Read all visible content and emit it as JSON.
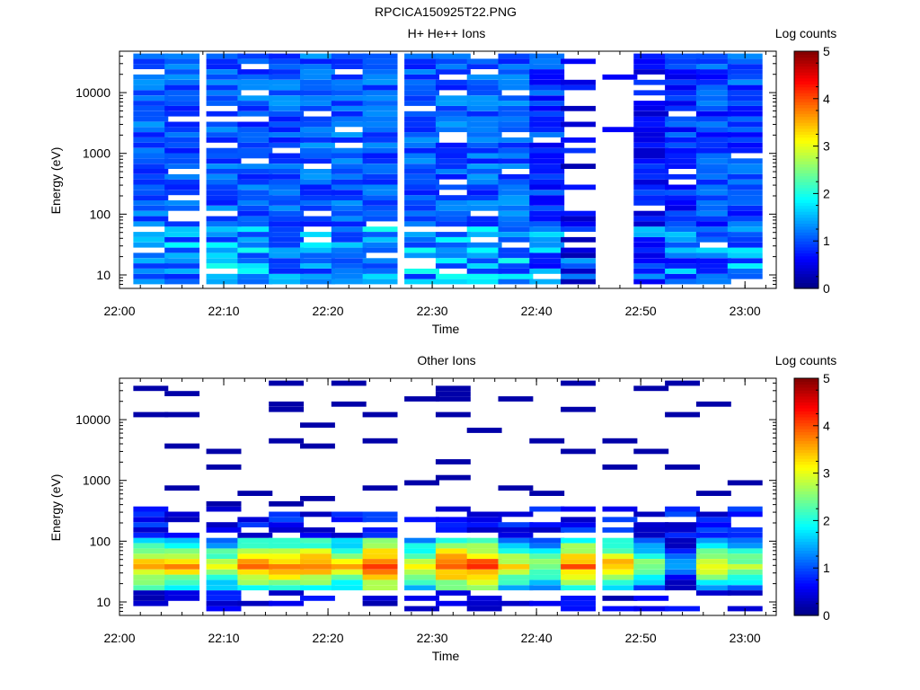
{
  "figure_title": "RPCICA150925T22.PNG",
  "colors": {
    "background": "#ffffff",
    "axis": "#000000",
    "colormap": [
      "#000080",
      "#0000ff",
      "#0080ff",
      "#00ffff",
      "#80ff80",
      "#ffff00",
      "#ff8000",
      "#ff0000",
      "#800000"
    ]
  },
  "chart_data": [
    {
      "type": "heatmap",
      "title": "H+ He++ Ions",
      "xlabel": "Time",
      "ylabel": "Energy (eV)",
      "colorbar_label": "Log counts",
      "colorbar_ticks": [
        "0",
        "1",
        "2",
        "3",
        "4",
        "5"
      ],
      "clim": [
        0,
        5
      ],
      "xlim": [
        "22:00",
        "23:03"
      ],
      "ylim": [
        6,
        48000
      ],
      "yscale": "log",
      "xticks": [
        "22:00",
        "22:10",
        "22:20",
        "22:30",
        "22:40",
        "22:50",
        "23:00"
      ],
      "yticks": [
        "10",
        "100",
        "1000",
        "10000"
      ],
      "time_bins": [
        "22:03",
        "22:06",
        "22:10",
        "22:13",
        "22:16",
        "22:19",
        "22:22",
        "22:25",
        "22:29",
        "22:32",
        "22:35",
        "22:38",
        "22:41",
        "22:44",
        "22:48",
        "22:51",
        "22:54",
        "22:57",
        "23:00"
      ],
      "profile": {
        "energy": [
          8,
          10,
          12,
          14,
          17,
          21,
          25,
          31,
          37,
          45,
          55,
          67,
          82,
          100,
          120,
          150,
          180,
          220,
          270,
          330,
          400,
          490,
          600,
          730,
          890,
          1090,
          1330,
          1620,
          1980,
          2420,
          2950,
          3600,
          4400,
          5370,
          6550,
          8000,
          9760,
          11900,
          14500,
          17700,
          21600,
          26400,
          32200,
          39300
        ],
        "level_by_column": [
          0.8,
          0.8,
          0.8,
          0.8,
          0.8,
          0.8,
          0.8,
          0.8,
          0.8,
          0.8,
          0.8,
          0.8,
          0.6,
          0.25,
          0,
          0.4,
          0.55,
          0.65,
          0.7
        ]
      },
      "notes_levels": {
        "low_energy_band_log_counts": 1.5,
        "high_energy_band_log_counts": 0.7
      }
    },
    {
      "type": "heatmap",
      "title": "Other Ions",
      "xlabel": "Time",
      "ylabel": "Energy (eV)",
      "colorbar_label": "Log counts",
      "colorbar_ticks": [
        "0",
        "1",
        "2",
        "3",
        "4",
        "5"
      ],
      "clim": [
        0,
        5
      ],
      "xlim": [
        "22:00",
        "23:03"
      ],
      "ylim": [
        6,
        48000
      ],
      "yscale": "log",
      "xticks": [
        "22:00",
        "22:10",
        "22:20",
        "22:30",
        "22:40",
        "22:50",
        "23:00"
      ],
      "yticks": [
        "10",
        "100",
        "1000",
        "10000"
      ],
      "time_bins": [
        "22:03",
        "22:06",
        "22:10",
        "22:13",
        "22:16",
        "22:19",
        "22:22",
        "22:25",
        "22:29",
        "22:32",
        "22:35",
        "22:38",
        "22:41",
        "22:44",
        "22:48",
        "22:51",
        "22:54",
        "22:57",
        "23:00"
      ],
      "peak_energy_eV": 40,
      "peak_log_counts_by_column": [
        3.7,
        3.6,
        3.1,
        3.8,
        3.8,
        3.8,
        3.4,
        4.1,
        3.2,
        4.0,
        4.0,
        3.2,
        2.8,
        3.9,
        3.6,
        2.8,
        1.6,
        3.3,
        2.9
      ]
    }
  ]
}
